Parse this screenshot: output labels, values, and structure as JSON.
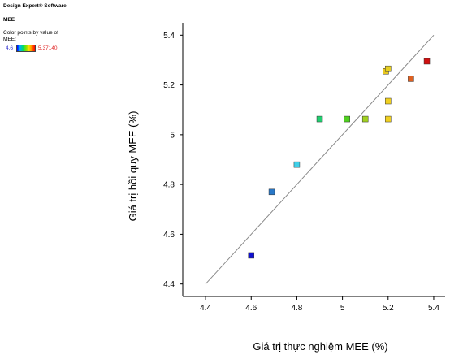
{
  "app": {
    "title": "Design Expert® Software",
    "response": "MEE"
  },
  "legend": {
    "caption": "Color points by value of MEE:",
    "min_label": "4.6",
    "max_label": "5.37140",
    "gradient": [
      "#0000ff",
      "#00b0ff",
      "#00e060",
      "#80e000",
      "#ffe000",
      "#ff8000",
      "#ff0000"
    ]
  },
  "chart_data": {
    "type": "scatter",
    "xlabel": "Giá trị thực nghiệm MEE (%)",
    "ylabel": "Giá trị hồi quy MEE (%)",
    "xlim": [
      4.3,
      5.45
    ],
    "ylim": [
      4.35,
      5.45
    ],
    "xticks": [
      "4.4",
      "4.6",
      "4.8",
      "5",
      "5.2",
      "5.4"
    ],
    "yticks": [
      "4.4",
      "4.6",
      "4.8",
      "5",
      "5.2",
      "5.4"
    ],
    "reference_line": {
      "from": [
        4.4,
        4.4
      ],
      "to": [
        5.4,
        5.4
      ]
    },
    "points": [
      {
        "x": 4.6,
        "y": 4.515,
        "color": "#1010d0"
      },
      {
        "x": 4.69,
        "y": 4.77,
        "color": "#2878c8"
      },
      {
        "x": 4.8,
        "y": 4.88,
        "color": "#40d0e8"
      },
      {
        "x": 4.9,
        "y": 5.063,
        "color": "#20d070"
      },
      {
        "x": 5.02,
        "y": 5.063,
        "color": "#50d020"
      },
      {
        "x": 5.1,
        "y": 5.063,
        "color": "#a0d020"
      },
      {
        "x": 5.2,
        "y": 5.063,
        "color": "#f0d020"
      },
      {
        "x": 5.2,
        "y": 5.135,
        "color": "#f0d020"
      },
      {
        "x": 5.19,
        "y": 5.255,
        "color": "#e8c820"
      },
      {
        "x": 5.2,
        "y": 5.265,
        "color": "#e8d020"
      },
      {
        "x": 5.3,
        "y": 5.225,
        "color": "#e06020"
      },
      {
        "x": 5.37,
        "y": 5.295,
        "color": "#d01010"
      }
    ]
  }
}
